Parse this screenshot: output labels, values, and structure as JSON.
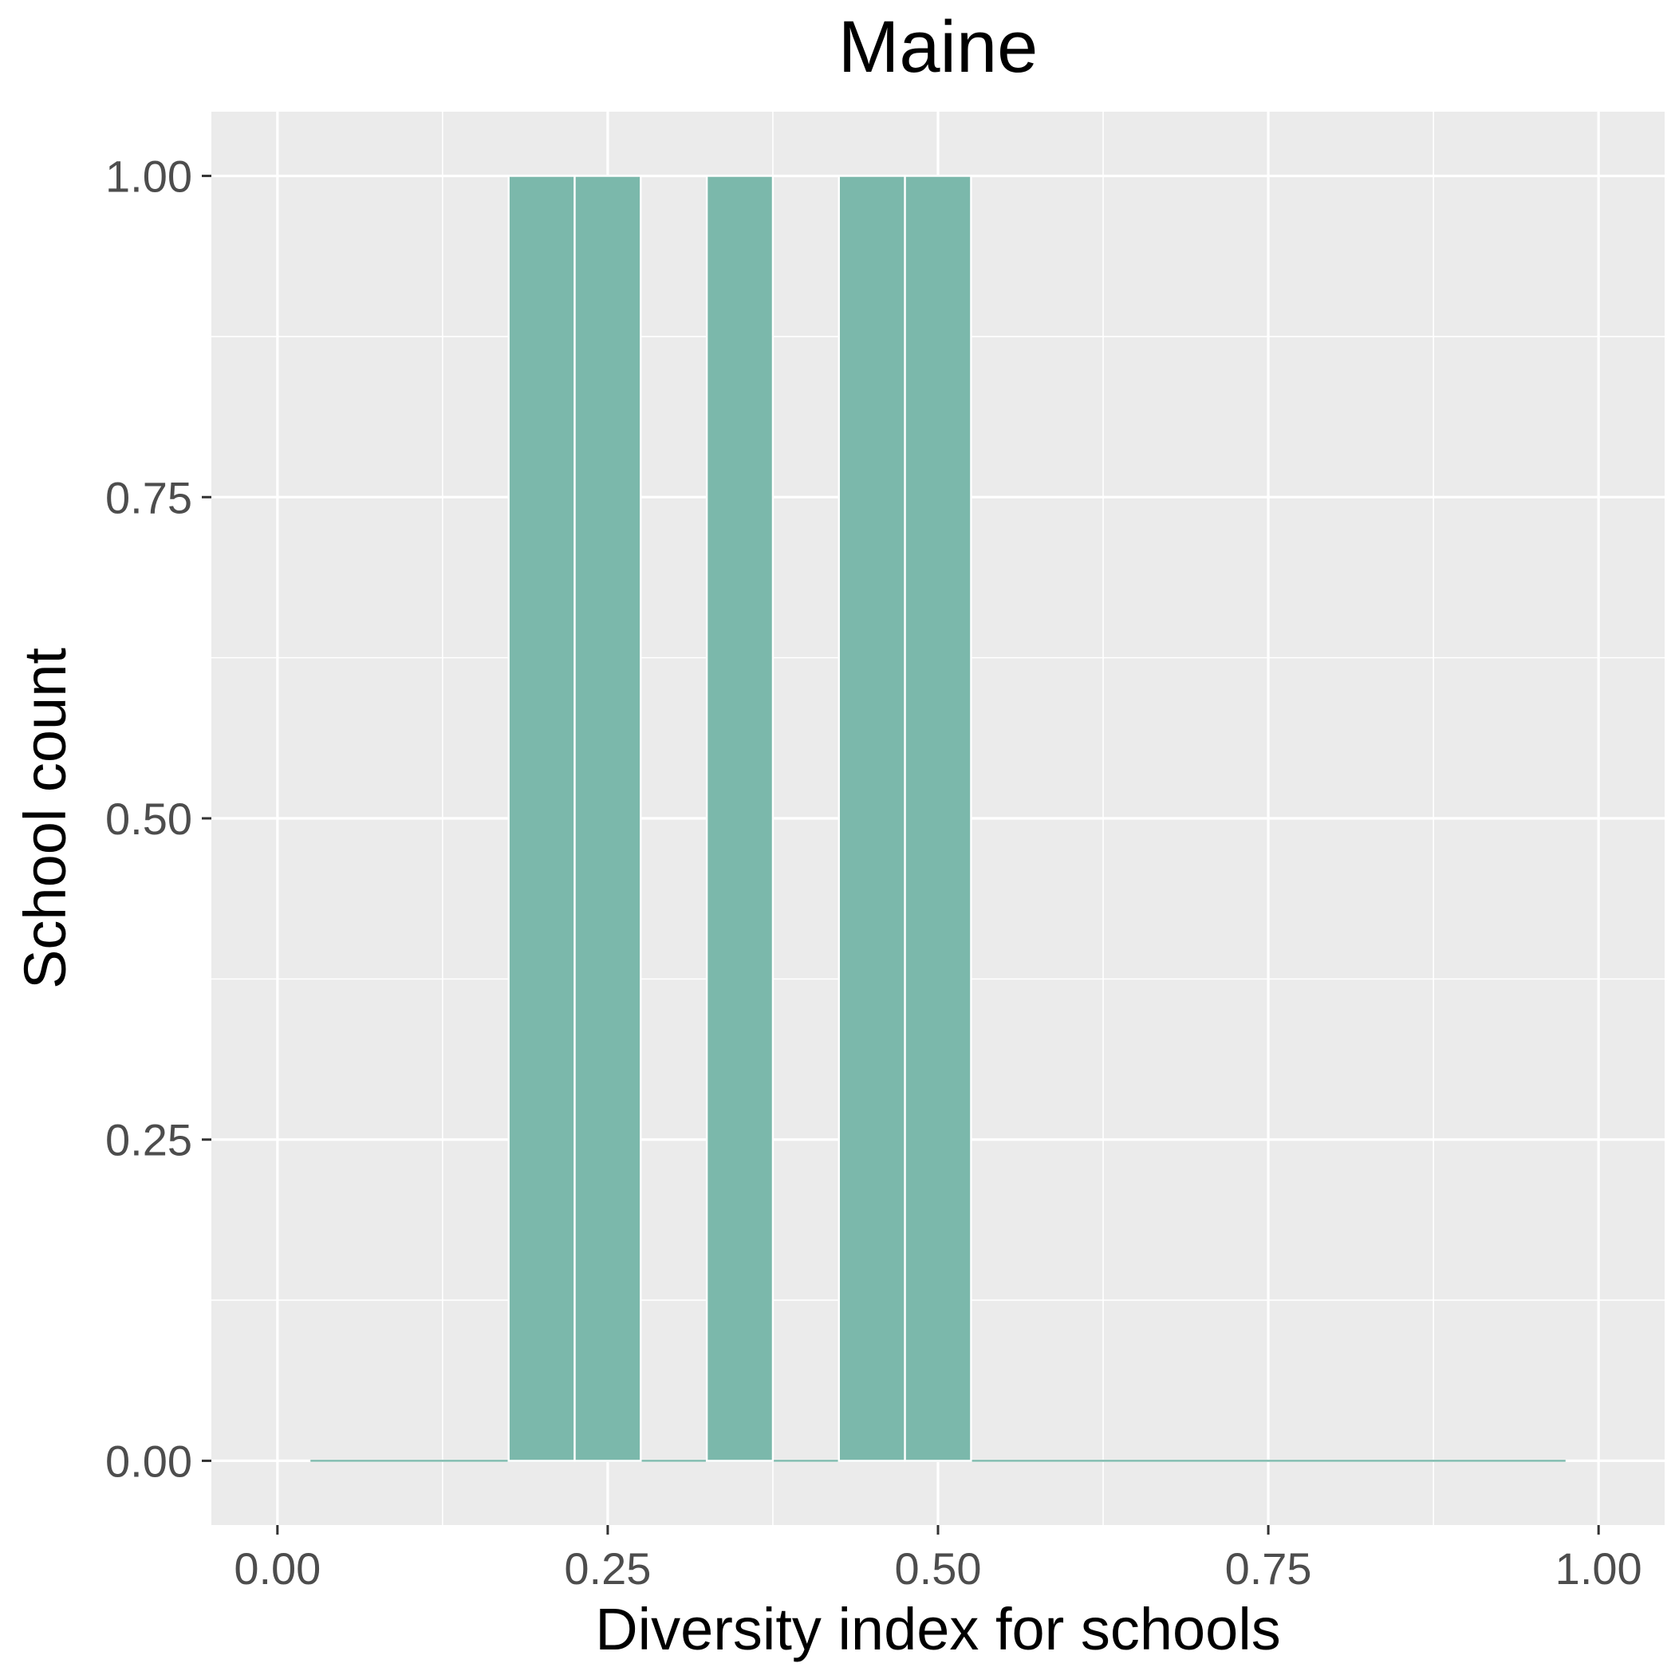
{
  "chart_data": {
    "type": "bar",
    "title": "Maine",
    "xlabel": "Diversity index for schools",
    "ylabel": "School count",
    "xlim": [
      -0.05,
      1.05
    ],
    "ylim": [
      -0.05,
      1.05
    ],
    "bin_width": 0.05,
    "x_ticks": [
      0,
      0.25,
      0.5,
      0.75,
      1
    ],
    "x_tick_labels": [
      "0.00",
      "0.25",
      "0.50",
      "0.75",
      "1.00"
    ],
    "y_ticks": [
      0,
      0.25,
      0.5,
      0.75,
      1
    ],
    "y_tick_labels": [
      "0.00",
      "0.25",
      "0.50",
      "0.75",
      "1.00"
    ],
    "bins": [
      {
        "x": 0.2,
        "count": 1
      },
      {
        "x": 0.25,
        "count": 1
      },
      {
        "x": 0.35,
        "count": 1
      },
      {
        "x": 0.45,
        "count": 1
      },
      {
        "x": 0.5,
        "count": 1
      }
    ],
    "baseline_range": [
      0.025,
      0.975
    ],
    "bar_color": "#7bb8ab",
    "panel_background": "#ebebeb",
    "grid": true,
    "legend": "none"
  }
}
